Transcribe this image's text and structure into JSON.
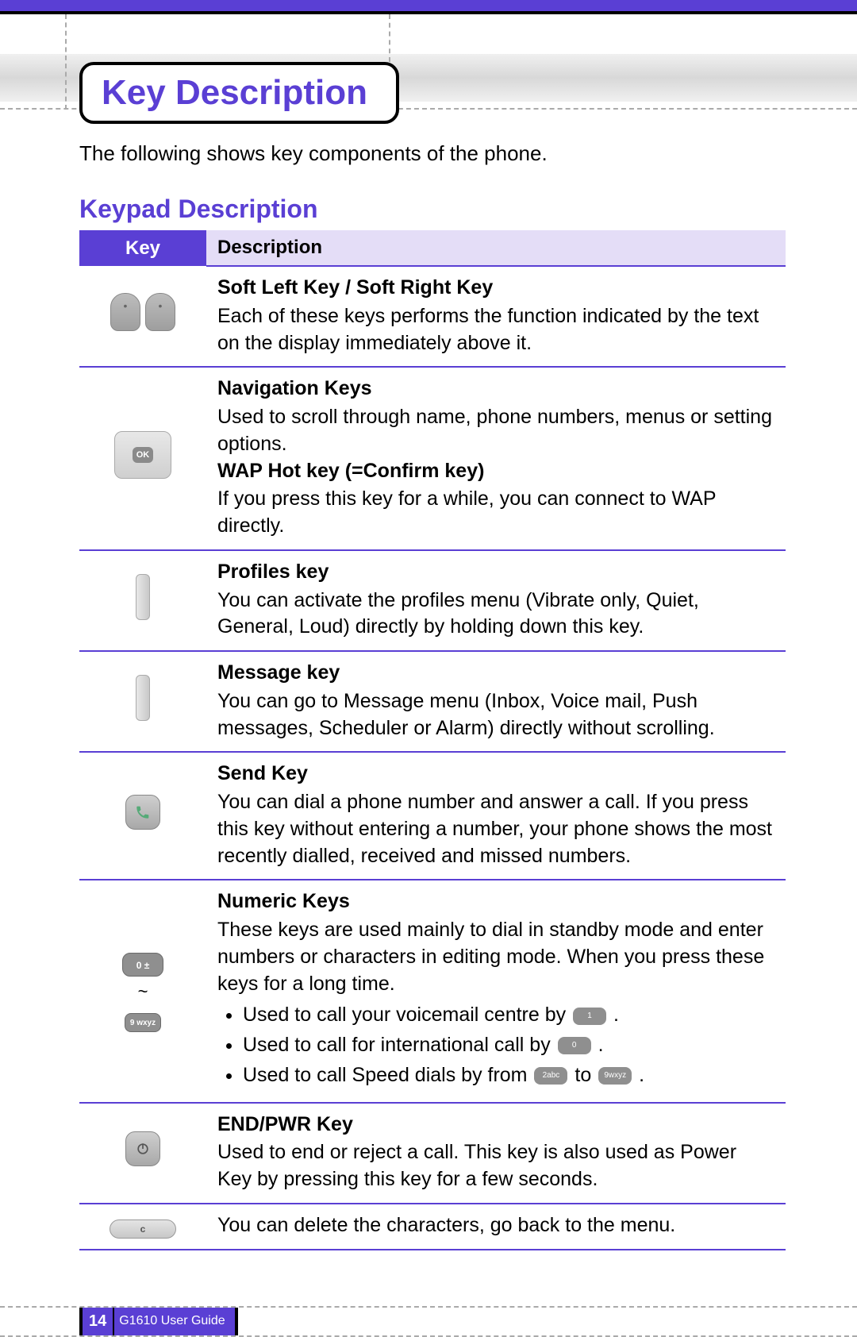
{
  "colors": {
    "accent": "#5a3fd4",
    "header_light": "#e4ddf7",
    "icon_gray": "#8f8f8f"
  },
  "page": {
    "title": "Key Description",
    "intro": "The following shows key components of the phone.",
    "subhead": "Keypad Description",
    "number": "14",
    "guide": "G1610 User Guide"
  },
  "table": {
    "headers": {
      "key": "Key",
      "desc": "Description"
    },
    "rows": [
      {
        "icon": "softkeys",
        "sections": [
          {
            "title": "Soft Left Key / Soft Right Key",
            "body": "Each of these keys performs the function indicated by the text on the display immediately above it."
          }
        ]
      },
      {
        "icon": "navpad",
        "sections": [
          {
            "title": "Navigation Keys",
            "body": "Used to scroll through name, phone numbers, menus or setting options."
          },
          {
            "title": "WAP Hot key (=Confirm key)",
            "body": "If you press this key for a while, you can connect to WAP directly."
          }
        ]
      },
      {
        "icon": "sidekey-left",
        "sections": [
          {
            "title": "Profiles key",
            "body": "You can activate the profiles menu (Vibrate only, Quiet, General, Loud) directly by holding down this key."
          }
        ]
      },
      {
        "icon": "sidekey-right",
        "sections": [
          {
            "title": "Message key",
            "body": "You can go to Message menu (Inbox, Voice mail, Push messages, Scheduler or Alarm) directly without scrolling."
          }
        ]
      },
      {
        "icon": "sendkey",
        "sections": [
          {
            "title": "Send Key",
            "body": "You can dial a phone number and answer a call. If you press this key without entering a number, your phone shows the most recently dialled, received and missed numbers."
          }
        ]
      },
      {
        "icon": "numeric",
        "sections": [
          {
            "title": "Numeric Keys",
            "body": "These keys are used mainly to dial in standby mode and enter numbers or characters in editing mode. When you press these keys for a long time.",
            "bullets": [
              {
                "pre": "Used to call your voicemail centre by ",
                "key": "1",
                "post": " ."
              },
              {
                "pre": "Used to call for international call by ",
                "key": "0",
                "post": " ."
              },
              {
                "pre": "Used to call Speed dials by from ",
                "key": "2abc",
                "mid": " to ",
                "key2": "9wxyz",
                "post": " ."
              }
            ]
          }
        ]
      },
      {
        "icon": "endkey",
        "sections": [
          {
            "title": "END/PWR Key",
            "body": "Used to end or reject a call. This key is also used as Power Key by pressing this key for a few seconds."
          }
        ]
      },
      {
        "icon": "clearkey",
        "sections": [
          {
            "body": "You can delete the characters, go back to the menu."
          }
        ]
      }
    ]
  }
}
